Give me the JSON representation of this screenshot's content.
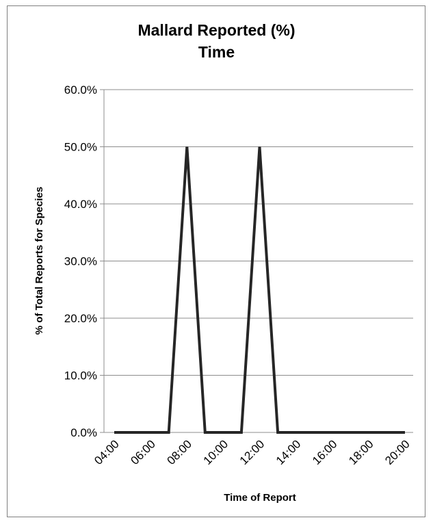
{
  "chart_data": {
    "type": "line",
    "title_lines": [
      "Mallard Reported (%)",
      "Time"
    ],
    "xlabel": "Time of Report",
    "ylabel": "% of Total Reports for Species",
    "x_tick_labels": [
      "04:00",
      "06:00",
      "08:00",
      "10:00",
      "12:00",
      "14:00",
      "16:00",
      "18:00",
      "20:00"
    ],
    "y_tick_labels": [
      "0.0%",
      "10.0%",
      "20.0%",
      "30.0%",
      "40.0%",
      "50.0%",
      "60.0%"
    ],
    "ylim": [
      0,
      0.6
    ],
    "grid": "horizontal",
    "legend": "none",
    "line_color": "#262626",
    "series": [
      {
        "x": [
          "04:00",
          "05:00",
          "06:00",
          "07:00",
          "08:00",
          "09:00",
          "10:00",
          "11:00",
          "12:00",
          "13:00",
          "14:00",
          "15:00",
          "16:00",
          "17:00",
          "18:00",
          "19:00",
          "20:00"
        ],
        "values": [
          0,
          0,
          0,
          0,
          0.5,
          0,
          0,
          0,
          0.5,
          0,
          0,
          0,
          0,
          0,
          0,
          0,
          0
        ]
      }
    ]
  }
}
